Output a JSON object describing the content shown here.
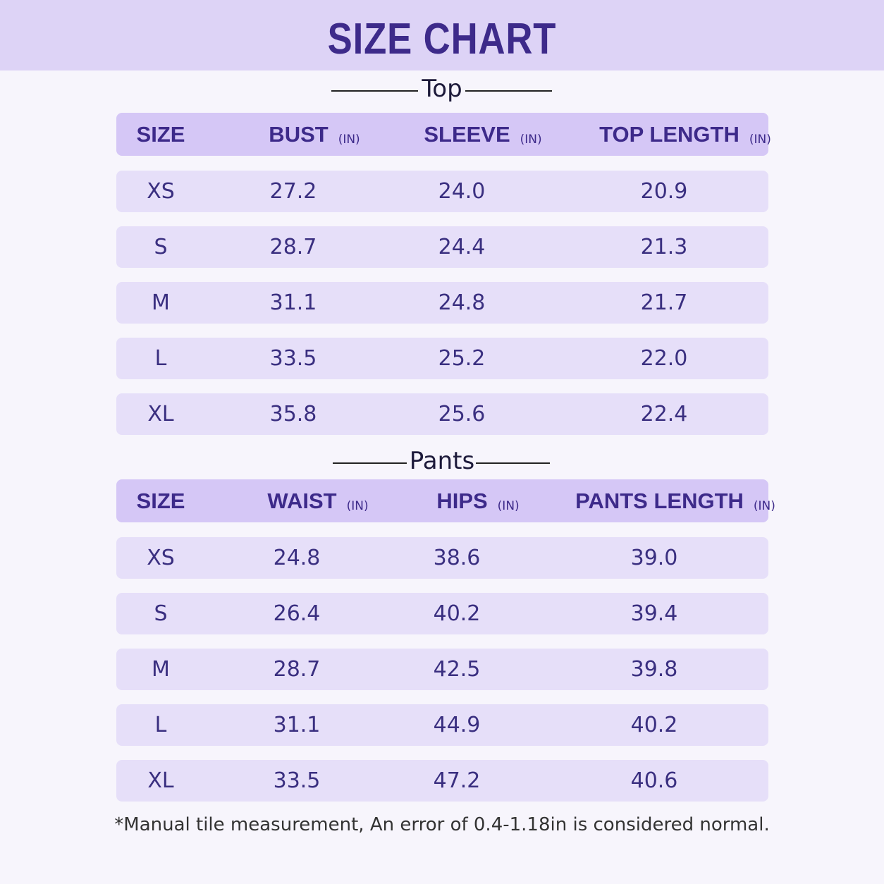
{
  "header": {
    "title": "SIZE CHART"
  },
  "sections": [
    {
      "label": "Top",
      "columns": [
        {
          "name": "SIZE"
        },
        {
          "name": "BUST",
          "unit": "(IN)"
        },
        {
          "name": "SLEEVE",
          "unit": "(IN)"
        },
        {
          "name": "TOP LENGTH",
          "unit": "(IN)"
        }
      ],
      "rows": [
        [
          "XS",
          "27.2",
          "24.0",
          "20.9"
        ],
        [
          "S",
          "28.7",
          "24.4",
          "21.3"
        ],
        [
          "M",
          "31.1",
          "24.8",
          "21.7"
        ],
        [
          "L",
          "33.5",
          "25.2",
          "22.0"
        ],
        [
          "XL",
          "35.8",
          "25.6",
          "22.4"
        ]
      ]
    },
    {
      "label": "Pants",
      "columns": [
        {
          "name": "SIZE"
        },
        {
          "name": "WAIST",
          "unit": "(IN)"
        },
        {
          "name": "HIPS",
          "unit": "(IN)"
        },
        {
          "name": "PANTS LENGTH",
          "unit": "(IN)"
        }
      ],
      "rows": [
        [
          "XS",
          "24.8",
          "38.6",
          "39.0"
        ],
        [
          "S",
          "26.4",
          "40.2",
          "39.4"
        ],
        [
          "M",
          "28.7",
          "42.5",
          "39.8"
        ],
        [
          "L",
          "31.1",
          "44.9",
          "40.2"
        ],
        [
          "XL",
          "33.5",
          "47.2",
          "40.6"
        ]
      ]
    }
  ],
  "footnote": "*Manual tile measurement, An error of 0.4-1.18in is considered normal."
}
